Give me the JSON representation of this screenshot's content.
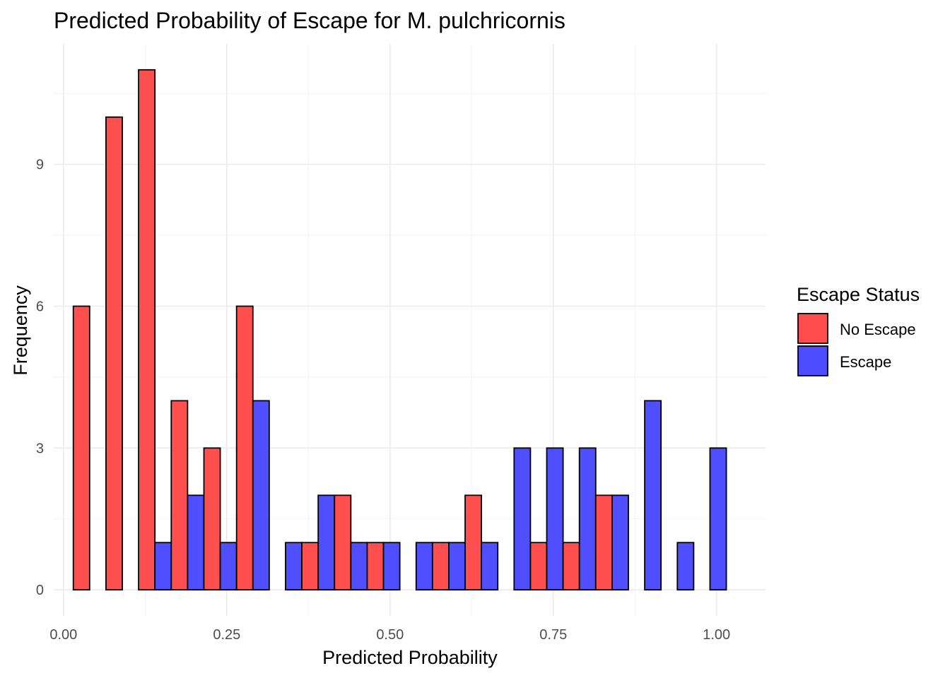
{
  "chart_data": {
    "type": "bar",
    "title": "Predicted Probability of Escape for M. pulchricornis",
    "xlabel": "Predicted Probability",
    "ylabel": "Frequency",
    "xlim": [
      -0.015,
      1.075
    ],
    "ylim": [
      -0.55,
      11.55
    ],
    "x_ticks": [
      0.0,
      0.25,
      0.5,
      0.75,
      1.0
    ],
    "x_tick_labels": [
      "0.00",
      "0.25",
      "0.50",
      "0.75",
      "1.00"
    ],
    "y_ticks": [
      0,
      3,
      6,
      9
    ],
    "y_tick_labels": [
      "0",
      "3",
      "6",
      "9"
    ],
    "grid": true,
    "legend": {
      "title": "Escape Status",
      "position": "right"
    },
    "bin_width": 0.05,
    "bin_centers": [
      0.04,
      0.09,
      0.14,
      0.19,
      0.24,
      0.29,
      0.34,
      0.39,
      0.44,
      0.49,
      0.54,
      0.59,
      0.64,
      0.69,
      0.74,
      0.79,
      0.84,
      0.89,
      0.94,
      0.99
    ],
    "series": [
      {
        "name": "No Escape",
        "color": "#ff4d4d",
        "values": [
          6,
          10,
          11,
          4,
          3,
          6,
          0,
          1,
          2,
          1,
          0,
          1,
          2,
          0,
          1,
          1,
          2,
          0,
          0,
          0
        ]
      },
      {
        "name": "Escape",
        "color": "#4d4dff",
        "values": [
          0,
          0,
          1,
          2,
          1,
          4,
          1,
          2,
          1,
          1,
          1,
          1,
          1,
          3,
          3,
          3,
          2,
          4,
          1,
          3
        ]
      }
    ]
  }
}
